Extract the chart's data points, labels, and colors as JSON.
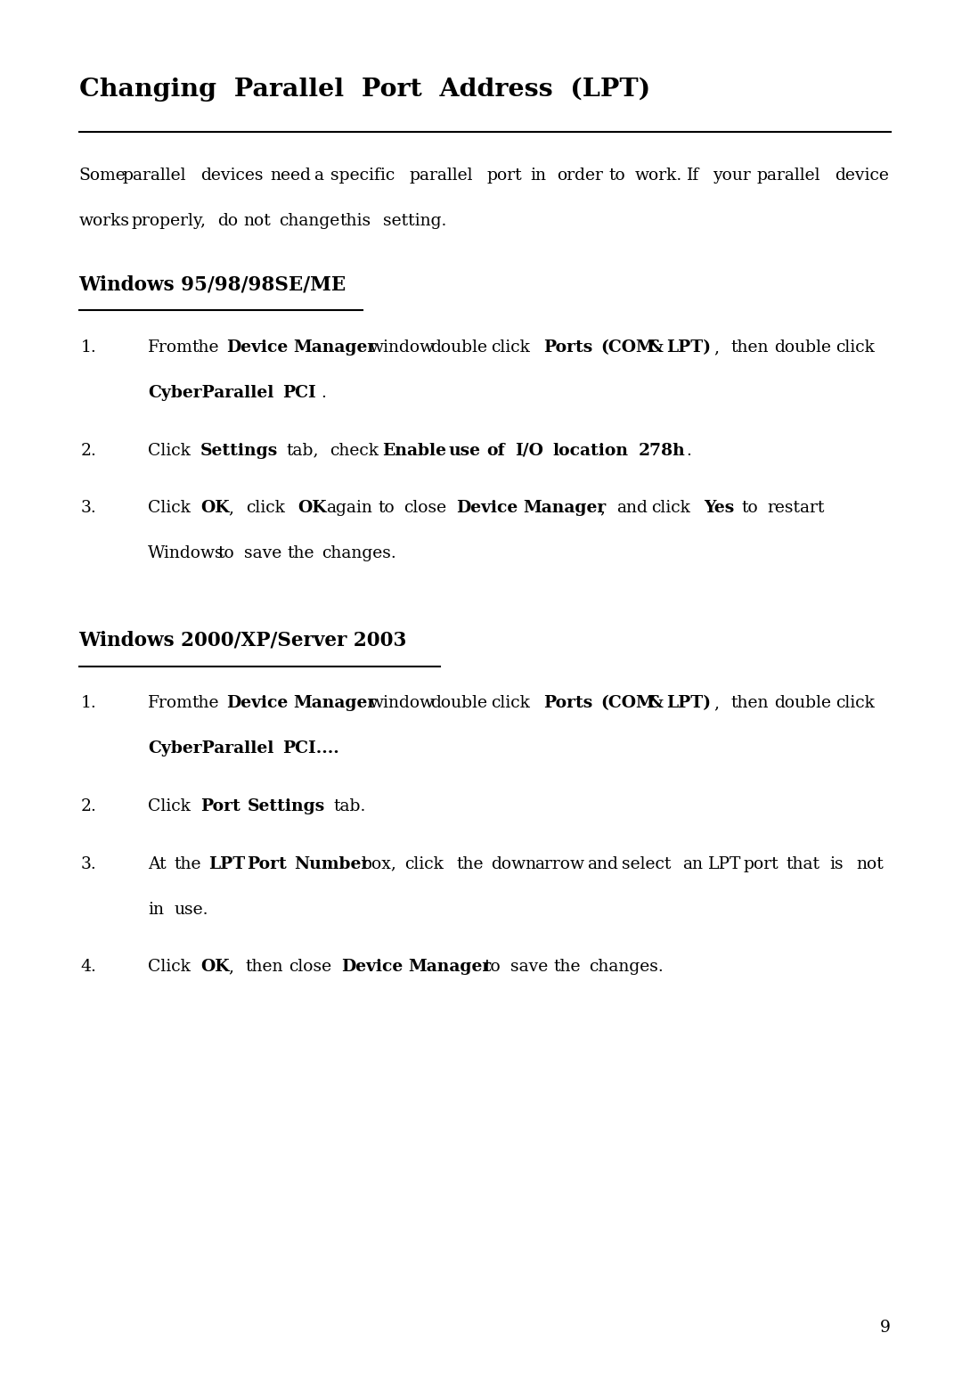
{
  "bg_color": "#ffffff",
  "title": "Changing  Parallel  Port  Address  (LPT)",
  "page_number": "9",
  "intro_text": "Some parallel devices need a specific parallel port in order to work.  If your parallel device works properly, do not change this setting.",
  "section1_heading": "Windows 95/98/98SE/ME",
  "section1_items": [
    {
      "number": "1.",
      "parts": [
        {
          "text": "From the ",
          "bold": false
        },
        {
          "text": "Device Manager",
          "bold": true
        },
        {
          "text": " window double click ",
          "bold": false
        },
        {
          "text": "Ports (COM & LPT)",
          "bold": true
        },
        {
          "text": ", then double click ",
          "bold": false
        },
        {
          "text": "CyberParallel PCI",
          "bold": true
        },
        {
          "text": ".",
          "bold": false
        }
      ]
    },
    {
      "number": "2.",
      "parts": [
        {
          "text": "Click ",
          "bold": false
        },
        {
          "text": "Settings",
          "bold": true
        },
        {
          "text": " tab, check ",
          "bold": false
        },
        {
          "text": "Enable use of I/O location 278h",
          "bold": true
        },
        {
          "text": ".",
          "bold": false
        }
      ]
    },
    {
      "number": "3.",
      "parts": [
        {
          "text": "Click ",
          "bold": false
        },
        {
          "text": "OK",
          "bold": true
        },
        {
          "text": ", click ",
          "bold": false
        },
        {
          "text": "OK",
          "bold": true
        },
        {
          "text": " again to close ",
          "bold": false
        },
        {
          "text": "Device Manager",
          "bold": true
        },
        {
          "text": ", and click ",
          "bold": false
        },
        {
          "text": "Yes",
          "bold": true
        },
        {
          "text": " to restart Windows to save the changes.",
          "bold": false
        }
      ]
    }
  ],
  "section2_heading": "Windows 2000/XP/Server 2003",
  "section2_items": [
    {
      "number": "1.",
      "parts": [
        {
          "text": "From the ",
          "bold": false
        },
        {
          "text": "Device Manager",
          "bold": true
        },
        {
          "text": " window double click ",
          "bold": false
        },
        {
          "text": "Ports (COM & LPT)",
          "bold": true
        },
        {
          "text": ", then double click ",
          "bold": false
        },
        {
          "text": "CyberParallel PCI....",
          "bold": true
        }
      ]
    },
    {
      "number": "2.",
      "parts": [
        {
          "text": "Click ",
          "bold": false
        },
        {
          "text": "Port Settings",
          "bold": true
        },
        {
          "text": " tab.",
          "bold": false
        }
      ]
    },
    {
      "number": "3.",
      "parts": [
        {
          "text": "At the ",
          "bold": false
        },
        {
          "text": "LPT Port Number",
          "bold": true
        },
        {
          "text": " box, click the down arrow and select an LPT port that is not in use.",
          "bold": false
        }
      ]
    },
    {
      "number": "4.",
      "parts": [
        {
          "text": "Click ",
          "bold": false
        },
        {
          "text": "OK",
          "bold": true
        },
        {
          "text": ", then close ",
          "bold": false
        },
        {
          "text": "Device Manager",
          "bold": true
        },
        {
          "text": " to save the changes.",
          "bold": false
        }
      ]
    }
  ]
}
